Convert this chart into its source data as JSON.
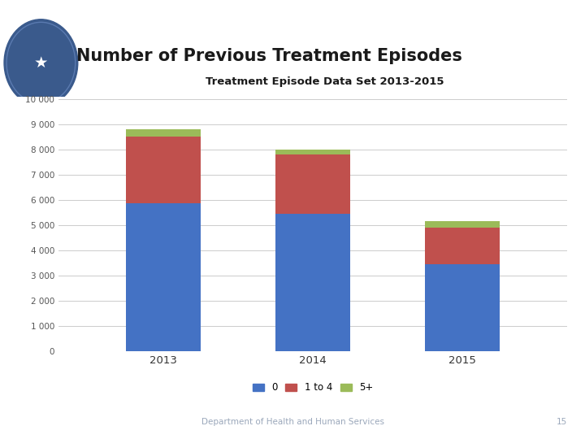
{
  "title": "Number of Previous Treatment Episodes",
  "subtitle": "Treatment Episode Data Set 2013-2015",
  "years": [
    "2013",
    "2014",
    "2015"
  ],
  "series": {
    "0": [
      5850,
      5450,
      3450
    ],
    "1 to 4": [
      2650,
      2350,
      1450
    ],
    "5+": [
      300,
      200,
      250
    ]
  },
  "colors": {
    "0": "#4472C4",
    "1 to 4": "#C0504D",
    "5+": "#9BBB59"
  },
  "ylim": [
    0,
    10000
  ],
  "yticks": [
    0,
    1000,
    2000,
    3000,
    4000,
    5000,
    6000,
    7000,
    8000,
    9000,
    10000
  ],
  "ytick_labels": [
    "0",
    "1 000",
    "2 000",
    "3 000",
    "4 000",
    "5 000",
    "6 000",
    "7 000",
    "8 000",
    "9 000",
    "10 000"
  ],
  "legend_labels": [
    "0",
    "1 to 4",
    "5+"
  ],
  "footer_text": "Department of Health and Human Services",
  "footer_page": "15",
  "bg_header_dark": "#1F2D50",
  "bg_header_mid": "#2E4472",
  "bg_footer": "#1F2D50",
  "grid_color": "#CCCCCC",
  "bar_width": 0.5
}
